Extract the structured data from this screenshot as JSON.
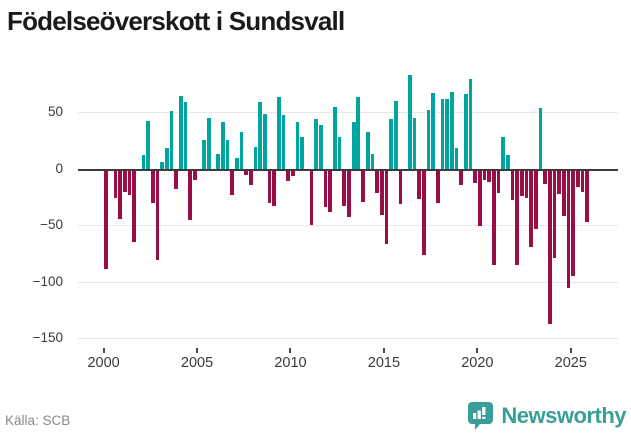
{
  "title": "Födelseöverskott i Sundsvall",
  "source": "Källa: SCB",
  "logo": {
    "text": "Newsworthy",
    "icon": "bar-chart-speech-bubble-icon",
    "color": "#3a9e98"
  },
  "colors": {
    "positive_bar": "#00a5a0",
    "negative_bar": "#9b0d45",
    "zero_line": "#3b3b3b",
    "gridline": "#e8e8e8",
    "axis_text": "#3a3a3a",
    "title_text": "#1a1a1a",
    "source_text": "#8a8a8a",
    "background": "#ffffff"
  },
  "chart_data": {
    "type": "bar",
    "title": "Födelseöverskott i Sundsvall",
    "xlabel": "",
    "ylabel": "",
    "unit": "persons per quarter (birth surplus)",
    "ylim": [
      -150,
      90
    ],
    "yticks": [
      50,
      0,
      -50,
      -100,
      -150
    ],
    "ytick_labels": [
      "50",
      "0",
      "−50",
      "−100",
      "−150"
    ],
    "xticks": [
      2000,
      2005,
      2010,
      2015,
      2020,
      2025
    ],
    "xtick_labels": [
      "2000",
      "2005",
      "2010",
      "2015",
      "2020",
      "2025"
    ],
    "grid": "horizontal",
    "legend": "none",
    "quarters_per_year": 4,
    "years": [
      {
        "year": 2000,
        "values": [
          -87,
          0,
          -24,
          -43
        ]
      },
      {
        "year": 2001,
        "values": [
          -19,
          -22,
          -63,
          0
        ]
      },
      {
        "year": 2002,
        "values": [
          13,
          43,
          -29,
          -79
        ]
      },
      {
        "year": 2003,
        "values": [
          7,
          19,
          52,
          -16
        ]
      },
      {
        "year": 2004,
        "values": [
          65,
          60,
          -44,
          -8
        ]
      },
      {
        "year": 2005,
        "values": [
          0,
          26,
          46,
          0
        ]
      },
      {
        "year": 2006,
        "values": [
          14,
          42,
          26,
          -22
        ]
      },
      {
        "year": 2007,
        "values": [
          10,
          33,
          -4,
          -13
        ]
      },
      {
        "year": 2008,
        "values": [
          20,
          60,
          49,
          -29
        ]
      },
      {
        "year": 2009,
        "values": [
          -31,
          64,
          48,
          -9
        ]
      },
      {
        "year": 2010,
        "values": [
          -5,
          42,
          29,
          0
        ]
      },
      {
        "year": 2011,
        "values": [
          -48,
          45,
          39,
          -32
        ]
      },
      {
        "year": 2012,
        "values": [
          -37,
          55,
          29,
          -31
        ]
      },
      {
        "year": 2013,
        "values": [
          -41,
          42,
          64,
          -28
        ]
      },
      {
        "year": 2014,
        "values": [
          33,
          14,
          -20,
          -39
        ]
      },
      {
        "year": 2015,
        "values": [
          -65,
          45,
          61,
          -30
        ]
      },
      {
        "year": 2016,
        "values": [
          0,
          84,
          46,
          -25
        ]
      },
      {
        "year": 2017,
        "values": [
          -75,
          53,
          68,
          -29
        ]
      },
      {
        "year": 2018,
        "values": [
          62,
          62,
          69,
          19
        ]
      },
      {
        "year": 2019,
        "values": [
          -13,
          67,
          80,
          -11
        ]
      },
      {
        "year": 2020,
        "values": [
          -49,
          -8,
          -10,
          -84
        ]
      },
      {
        "year": 2021,
        "values": [
          -20,
          29,
          13,
          -26
        ]
      },
      {
        "year": 2022,
        "values": [
          -84,
          -23,
          -24,
          -68
        ]
      },
      {
        "year": 2023,
        "values": [
          -52,
          54,
          -12,
          -136
        ]
      },
      {
        "year": 2024,
        "values": [
          -77,
          -21,
          -40,
          -104
        ]
      },
      {
        "year": 2025,
        "values": [
          -93,
          -15,
          -19,
          -46
        ]
      }
    ]
  }
}
